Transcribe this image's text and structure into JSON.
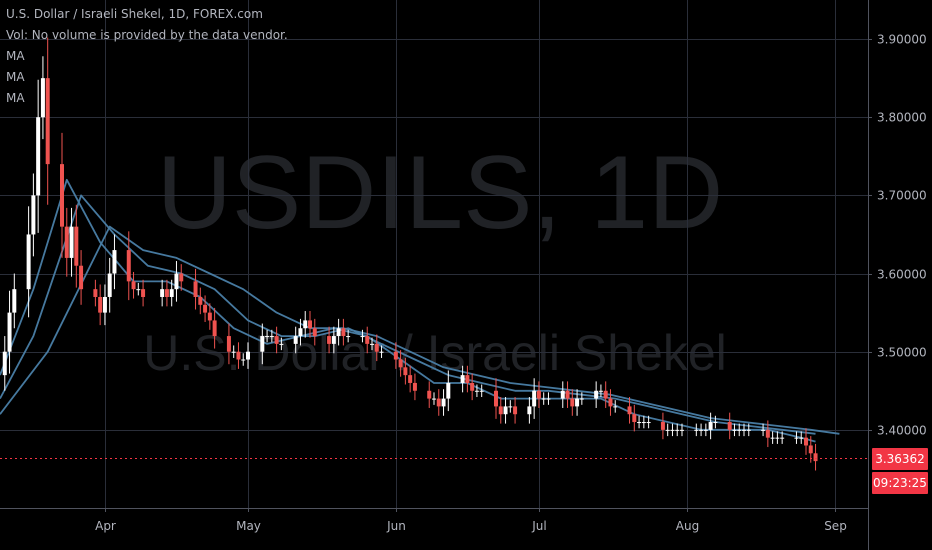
{
  "legend": {
    "title": "U.S. Dollar / Israeli Shekel, 1D, FOREX.com",
    "volume_note": "Vol: No volume is provided by the data vendor.",
    "ma_labels": [
      "MA",
      "MA",
      "MA"
    ]
  },
  "watermark": {
    "symbol": "USDILS, 1D",
    "description": "U.S. Dollar / Israeli Shekel"
  },
  "current_price": {
    "label": "3.36362",
    "value": 3.36362,
    "countdown": "09:23:25"
  },
  "colors": {
    "background": "#000000",
    "grid": "#2a2e39",
    "up": "#ffffff",
    "down": "#ef5350",
    "ma": "#4a7fa8",
    "price_line": "#f23645",
    "axis_text": "#b2b5be"
  },
  "chart_data": {
    "type": "candlestick",
    "title": "U.S. Dollar / Israeli Shekel, 1D, FOREX.com",
    "y_axis": {
      "ticks": [
        3.9,
        3.8,
        3.7,
        3.6,
        3.5,
        3.4
      ],
      "tick_labels": [
        "3.90000",
        "3.80000",
        "3.70000",
        "3.60000",
        "3.50000",
        "3.40000"
      ],
      "range": [
        3.3,
        3.95
      ]
    },
    "x_axis": {
      "ticks": [
        "Apr",
        "May",
        "Jun",
        "Jul",
        "Aug",
        "Sep"
      ],
      "tick_dates": [
        "2020-04-01",
        "2020-05-01",
        "2020-06-01",
        "2020-07-01",
        "2020-08-01",
        "2020-09-01"
      ],
      "range": [
        "2020-03-10",
        "2020-09-08"
      ]
    },
    "close_series": [
      [
        "2020-03-10",
        3.47
      ],
      [
        "2020-03-11",
        3.5
      ],
      [
        "2020-03-12",
        3.55
      ],
      [
        "2020-03-13",
        3.58
      ],
      [
        "2020-03-16",
        3.65
      ],
      [
        "2020-03-17",
        3.7
      ],
      [
        "2020-03-18",
        3.8
      ],
      [
        "2020-03-19",
        3.85
      ],
      [
        "2020-03-20",
        3.74
      ],
      [
        "2020-03-23",
        3.66
      ],
      [
        "2020-03-24",
        3.62
      ],
      [
        "2020-03-25",
        3.66
      ],
      [
        "2020-03-26",
        3.61
      ],
      [
        "2020-03-27",
        3.58
      ],
      [
        "2020-03-30",
        3.57
      ],
      [
        "2020-03-31",
        3.55
      ],
      [
        "2020-04-01",
        3.57
      ],
      [
        "2020-04-02",
        3.6
      ],
      [
        "2020-04-03",
        3.63
      ],
      [
        "2020-04-06",
        3.59
      ],
      [
        "2020-04-07",
        3.58
      ],
      [
        "2020-04-08",
        3.58
      ],
      [
        "2020-04-09",
        3.57
      ],
      [
        "2020-04-13",
        3.58
      ],
      [
        "2020-04-14",
        3.57
      ],
      [
        "2020-04-15",
        3.58
      ],
      [
        "2020-04-16",
        3.6
      ],
      [
        "2020-04-17",
        3.59
      ],
      [
        "2020-04-20",
        3.57
      ],
      [
        "2020-04-21",
        3.56
      ],
      [
        "2020-04-22",
        3.55
      ],
      [
        "2020-04-23",
        3.54
      ],
      [
        "2020-04-24",
        3.52
      ],
      [
        "2020-04-27",
        3.5
      ],
      [
        "2020-04-28",
        3.5
      ],
      [
        "2020-04-29",
        3.49
      ],
      [
        "2020-04-30",
        3.49
      ],
      [
        "2020-05-01",
        3.5
      ],
      [
        "2020-05-04",
        3.52
      ],
      [
        "2020-05-05",
        3.52
      ],
      [
        "2020-05-06",
        3.52
      ],
      [
        "2020-05-07",
        3.51
      ],
      [
        "2020-05-08",
        3.51
      ],
      [
        "2020-05-11",
        3.52
      ],
      [
        "2020-05-12",
        3.53
      ],
      [
        "2020-05-13",
        3.54
      ],
      [
        "2020-05-14",
        3.53
      ],
      [
        "2020-05-15",
        3.52
      ],
      [
        "2020-05-18",
        3.51
      ],
      [
        "2020-05-19",
        3.52
      ],
      [
        "2020-05-20",
        3.53
      ],
      [
        "2020-05-21",
        3.52
      ],
      [
        "2020-05-22",
        3.52
      ],
      [
        "2020-05-25",
        3.52
      ],
      [
        "2020-05-26",
        3.51
      ],
      [
        "2020-05-27",
        3.51
      ],
      [
        "2020-05-28",
        3.5
      ],
      [
        "2020-05-29",
        3.5
      ],
      [
        "2020-06-01",
        3.49
      ],
      [
        "2020-06-02",
        3.48
      ],
      [
        "2020-06-03",
        3.47
      ],
      [
        "2020-06-04",
        3.46
      ],
      [
        "2020-06-05",
        3.45
      ],
      [
        "2020-06-08",
        3.44
      ],
      [
        "2020-06-09",
        3.44
      ],
      [
        "2020-06-10",
        3.43
      ],
      [
        "2020-06-11",
        3.44
      ],
      [
        "2020-06-12",
        3.46
      ],
      [
        "2020-06-15",
        3.47
      ],
      [
        "2020-06-16",
        3.46
      ],
      [
        "2020-06-17",
        3.45
      ],
      [
        "2020-06-18",
        3.45
      ],
      [
        "2020-06-19",
        3.45
      ],
      [
        "2020-06-22",
        3.43
      ],
      [
        "2020-06-23",
        3.42
      ],
      [
        "2020-06-24",
        3.43
      ],
      [
        "2020-06-25",
        3.43
      ],
      [
        "2020-06-26",
        3.42
      ],
      [
        "2020-06-29",
        3.43
      ],
      [
        "2020-06-30",
        3.45
      ],
      [
        "2020-07-01",
        3.44
      ],
      [
        "2020-07-02",
        3.44
      ],
      [
        "2020-07-03",
        3.44
      ],
      [
        "2020-07-06",
        3.45
      ],
      [
        "2020-07-07",
        3.44
      ],
      [
        "2020-07-08",
        3.43
      ],
      [
        "2020-07-09",
        3.44
      ],
      [
        "2020-07-10",
        3.44
      ],
      [
        "2020-07-13",
        3.45
      ],
      [
        "2020-07-14",
        3.45
      ],
      [
        "2020-07-15",
        3.44
      ],
      [
        "2020-07-16",
        3.43
      ],
      [
        "2020-07-17",
        3.43
      ],
      [
        "2020-07-20",
        3.42
      ],
      [
        "2020-07-21",
        3.41
      ],
      [
        "2020-07-22",
        3.41
      ],
      [
        "2020-07-23",
        3.41
      ],
      [
        "2020-07-24",
        3.41
      ],
      [
        "2020-07-27",
        3.4
      ],
      [
        "2020-07-28",
        3.4
      ],
      [
        "2020-07-29",
        3.4
      ],
      [
        "2020-07-30",
        3.4
      ],
      [
        "2020-07-31",
        3.4
      ],
      [
        "2020-08-03",
        3.4
      ],
      [
        "2020-08-04",
        3.4
      ],
      [
        "2020-08-05",
        3.4
      ],
      [
        "2020-08-06",
        3.41
      ],
      [
        "2020-08-07",
        3.41
      ],
      [
        "2020-08-10",
        3.4
      ],
      [
        "2020-08-11",
        3.4
      ],
      [
        "2020-08-12",
        3.4
      ],
      [
        "2020-08-13",
        3.4
      ],
      [
        "2020-08-14",
        3.4
      ],
      [
        "2020-08-17",
        3.4
      ],
      [
        "2020-08-18",
        3.39
      ],
      [
        "2020-08-19",
        3.39
      ],
      [
        "2020-08-20",
        3.39
      ],
      [
        "2020-08-21",
        3.39
      ],
      [
        "2020-08-24",
        3.39
      ],
      [
        "2020-08-25",
        3.39
      ],
      [
        "2020-08-26",
        3.38
      ],
      [
        "2020-08-27",
        3.37
      ],
      [
        "2020-08-28",
        3.36
      ]
    ],
    "ma_series": [
      {
        "points": [
          [
            "2020-03-10",
            3.47
          ],
          [
            "2020-03-17",
            3.58
          ],
          [
            "2020-03-24",
            3.72
          ],
          [
            "2020-03-31",
            3.64
          ],
          [
            "2020-04-07",
            3.59
          ],
          [
            "2020-04-14",
            3.59
          ],
          [
            "2020-04-21",
            3.57
          ],
          [
            "2020-04-28",
            3.53
          ],
          [
            "2020-05-05",
            3.51
          ],
          [
            "2020-05-12",
            3.52
          ],
          [
            "2020-05-19",
            3.53
          ],
          [
            "2020-05-26",
            3.52
          ],
          [
            "2020-06-02",
            3.49
          ],
          [
            "2020-06-09",
            3.46
          ],
          [
            "2020-06-16",
            3.46
          ],
          [
            "2020-06-23",
            3.44
          ],
          [
            "2020-06-30",
            3.44
          ],
          [
            "2020-07-07",
            3.44
          ],
          [
            "2020-07-14",
            3.44
          ],
          [
            "2020-07-21",
            3.42
          ],
          [
            "2020-07-28",
            3.41
          ],
          [
            "2020-08-04",
            3.4
          ],
          [
            "2020-08-11",
            3.4
          ],
          [
            "2020-08-18",
            3.4
          ],
          [
            "2020-08-25",
            3.39
          ],
          [
            "2020-08-28",
            3.385
          ]
        ]
      },
      {
        "points": [
          [
            "2020-03-10",
            3.44
          ],
          [
            "2020-03-17",
            3.52
          ],
          [
            "2020-03-27",
            3.7
          ],
          [
            "2020-04-03",
            3.65
          ],
          [
            "2020-04-10",
            3.61
          ],
          [
            "2020-04-17",
            3.6
          ],
          [
            "2020-04-24",
            3.58
          ],
          [
            "2020-05-01",
            3.54
          ],
          [
            "2020-05-08",
            3.52
          ],
          [
            "2020-05-15",
            3.52
          ],
          [
            "2020-05-22",
            3.53
          ],
          [
            "2020-05-29",
            3.51
          ],
          [
            "2020-06-05",
            3.49
          ],
          [
            "2020-06-12",
            3.47
          ],
          [
            "2020-06-19",
            3.46
          ],
          [
            "2020-06-26",
            3.45
          ],
          [
            "2020-07-03",
            3.45
          ],
          [
            "2020-07-10",
            3.445
          ],
          [
            "2020-07-17",
            3.44
          ],
          [
            "2020-07-24",
            3.43
          ],
          [
            "2020-07-31",
            3.42
          ],
          [
            "2020-08-07",
            3.41
          ],
          [
            "2020-08-14",
            3.405
          ],
          [
            "2020-08-21",
            3.4
          ],
          [
            "2020-08-28",
            3.395
          ]
        ]
      },
      {
        "points": [
          [
            "2020-03-10",
            3.42
          ],
          [
            "2020-03-20",
            3.5
          ],
          [
            "2020-04-02",
            3.66
          ],
          [
            "2020-04-09",
            3.63
          ],
          [
            "2020-04-16",
            3.62
          ],
          [
            "2020-04-23",
            3.6
          ],
          [
            "2020-04-30",
            3.58
          ],
          [
            "2020-05-07",
            3.55
          ],
          [
            "2020-05-14",
            3.53
          ],
          [
            "2020-05-21",
            3.53
          ],
          [
            "2020-05-28",
            3.52
          ],
          [
            "2020-06-04",
            3.5
          ],
          [
            "2020-06-11",
            3.48
          ],
          [
            "2020-06-18",
            3.47
          ],
          [
            "2020-06-25",
            3.46
          ],
          [
            "2020-07-02",
            3.455
          ],
          [
            "2020-07-09",
            3.45
          ],
          [
            "2020-07-16",
            3.445
          ],
          [
            "2020-07-23",
            3.435
          ],
          [
            "2020-07-30",
            3.425
          ],
          [
            "2020-08-06",
            3.415
          ],
          [
            "2020-08-13",
            3.41
          ],
          [
            "2020-08-20",
            3.405
          ],
          [
            "2020-08-27",
            3.4
          ],
          [
            "2020-09-02",
            3.395
          ]
        ]
      }
    ]
  }
}
